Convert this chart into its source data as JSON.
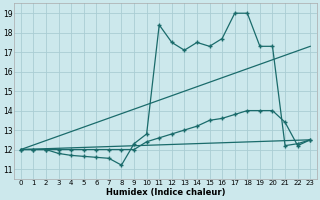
{
  "title": "",
  "xlabel": "Humidex (Indice chaleur)",
  "bg_color": "#cce8ec",
  "grid_color": "#aacdd4",
  "line_color": "#1a6b6b",
  "xlim": [
    -0.5,
    23.5
  ],
  "ylim": [
    10.5,
    19.5
  ],
  "xticks": [
    0,
    1,
    2,
    3,
    4,
    5,
    6,
    7,
    8,
    9,
    10,
    11,
    12,
    13,
    14,
    15,
    16,
    17,
    18,
    19,
    20,
    21,
    22,
    23
  ],
  "yticks": [
    11,
    12,
    13,
    14,
    15,
    16,
    17,
    18,
    19
  ],
  "line1_x": [
    0,
    1,
    2,
    3,
    4,
    5,
    6,
    7,
    8,
    9,
    10,
    11,
    12,
    13,
    14,
    15,
    16,
    17,
    18,
    19,
    20,
    21,
    22,
    23
  ],
  "line1_y": [
    12.0,
    12.0,
    12.0,
    11.8,
    11.7,
    11.65,
    11.6,
    11.55,
    11.2,
    12.3,
    12.8,
    18.4,
    17.5,
    17.1,
    17.5,
    17.3,
    17.7,
    19.0,
    19.0,
    17.3,
    17.3,
    12.2,
    12.3,
    12.5
  ],
  "line2_x": [
    0,
    1,
    2,
    3,
    4,
    5,
    6,
    7,
    8,
    9,
    10,
    11,
    12,
    13,
    14,
    15,
    16,
    17,
    18,
    19,
    20,
    21,
    22,
    23
  ],
  "line2_y": [
    12.0,
    12.0,
    12.0,
    12.0,
    12.0,
    12.0,
    12.0,
    12.0,
    12.0,
    12.0,
    12.4,
    12.6,
    12.8,
    13.0,
    13.2,
    13.5,
    13.6,
    13.8,
    14.0,
    14.0,
    14.0,
    13.4,
    12.2,
    12.5
  ],
  "line3_x": [
    0,
    23
  ],
  "line3_y": [
    12.0,
    17.3
  ],
  "line4_x": [
    0,
    23
  ],
  "line4_y": [
    12.0,
    12.5
  ]
}
